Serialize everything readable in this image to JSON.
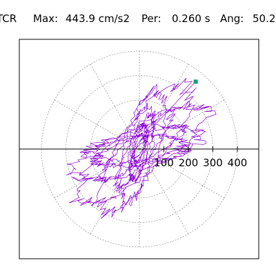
{
  "header": {
    "station": "TCR",
    "max_label": "Max:",
    "max_value": "443.9 cm/s2",
    "period_label": "Per:",
    "period_value": "0.260 s",
    "angle_label": "Ang:",
    "angle_value": "50.2"
  },
  "colors": {
    "trace": "#8b00d4",
    "marker": "#0aa07a",
    "grid": "#9a9a9a",
    "axis": "#000000",
    "frame": "#000000"
  },
  "chart_data": {
    "type": "polar",
    "title": "",
    "radial_ticks": [
      100,
      200,
      300,
      400
    ],
    "radial_tick_labels": [
      "100",
      "200",
      "300",
      "400"
    ],
    "rmax": 400,
    "ring_radii": [
      100,
      200,
      300,
      400
    ],
    "spoke_angles_deg": [
      0,
      30,
      60,
      90,
      120,
      150,
      180,
      210,
      240,
      270,
      300,
      330
    ],
    "grid": true,
    "orbit_amplitudes": {
      "major_axis_angle_deg": 50.2,
      "peak": 443.9
    },
    "peak_point": {
      "x": 230,
      "y": 275
    }
  }
}
